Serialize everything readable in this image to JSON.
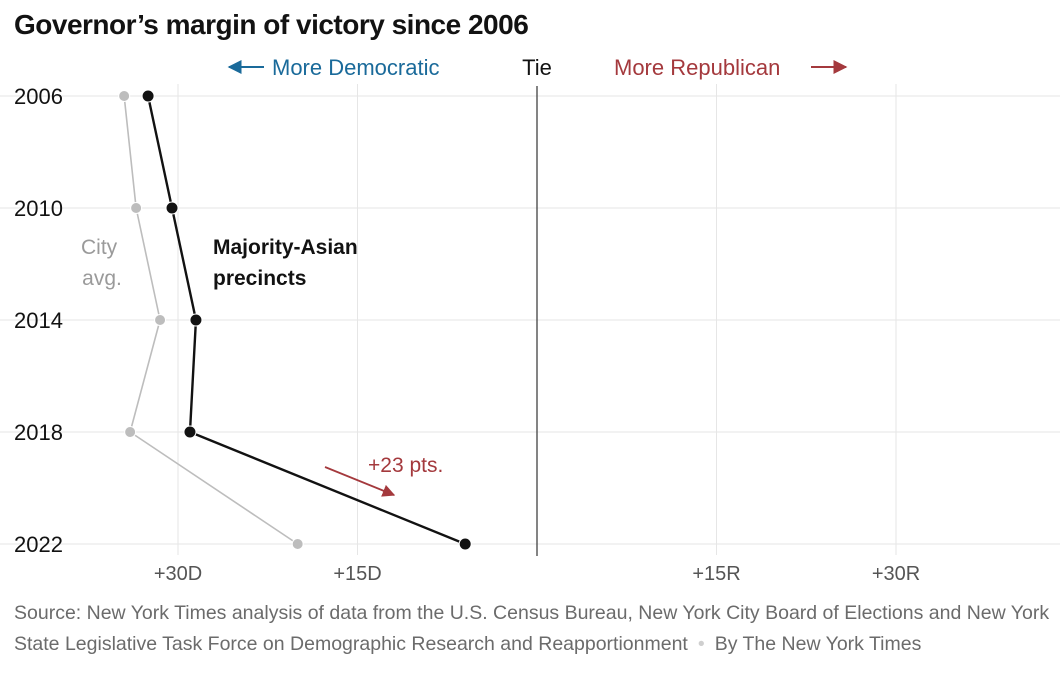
{
  "chart_data": {
    "type": "line",
    "title": "Governor’s margin of victory since 2006",
    "orientation": "years on vertical axis, margin on horizontal axis",
    "axis_x": {
      "range": [
        -40,
        40
      ],
      "ticks": [
        {
          "value": -30,
          "label": "+30D"
        },
        {
          "value": -15,
          "label": "+15D"
        },
        {
          "value": 15,
          "label": "+15R"
        },
        {
          "value": 30,
          "label": "+30R"
        }
      ],
      "zero_label": "Tie",
      "left_label": "More Democratic",
      "right_label": "More Republican"
    },
    "axis_y": {
      "categories": [
        "2006",
        "2010",
        "2014",
        "2018",
        "2022"
      ]
    },
    "grid": true,
    "series": [
      {
        "name": "City avg.",
        "color": "#bdbdbd",
        "values": [
          -34.5,
          -33.5,
          -31.5,
          -34,
          -20
        ]
      },
      {
        "name": "Majority-Asian precincts",
        "color": "#121212",
        "values": [
          -32.5,
          -30.5,
          -28.5,
          -29,
          -6
        ]
      }
    ],
    "annotations": [
      {
        "text": "+23 pts.",
        "color": "#a4393d"
      }
    ]
  },
  "source": {
    "text": "Source: New York Times analysis of data from the U.S. Census Bureau, New York City Board of Elections and New York State Legislative Task Force on Demographic Research and Reapportionment",
    "separator": "•",
    "credit": "By The New York Times"
  },
  "colors": {
    "democratic": "#1a6a9a",
    "republican": "#a4393d",
    "grid": "#e6e6e6",
    "city": "#bdbdbd",
    "asian": "#121212"
  }
}
